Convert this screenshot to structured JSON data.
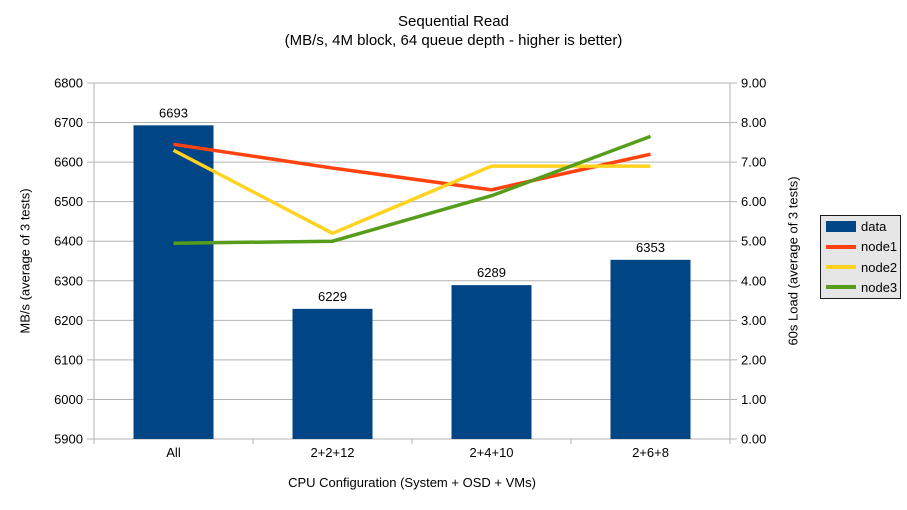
{
  "chart_data": {
    "type": "bar+line combo, dual y-axes",
    "title": "Sequential Read",
    "subtitle": "(MB/s, 4M block, 64 queue depth - higher is better)",
    "categories": [
      "All",
      "2+2+12",
      "2+4+10",
      "2+6+8"
    ],
    "xlabel": "CPU Configuration (System + OSD + VMs)",
    "bar_series": {
      "name": "data",
      "axis": "left",
      "color": "#004586",
      "values": [
        6693,
        6229,
        6289,
        6353
      ],
      "value_labels": [
        "6693",
        "6229",
        "6289",
        "6353"
      ]
    },
    "line_series": [
      {
        "name": "node1",
        "axis": "right",
        "color": "#FF420E",
        "values": [
          7.45,
          6.85,
          6.3,
          7.2
        ]
      },
      {
        "name": "node2",
        "axis": "right",
        "color": "#FFD320",
        "values": [
          7.3,
          5.2,
          6.9,
          6.9
        ]
      },
      {
        "name": "node3",
        "axis": "right",
        "color": "#579D1C",
        "values": [
          4.95,
          5.0,
          6.15,
          7.65
        ]
      }
    ],
    "left_axis": {
      "label": "MB/s (average of 3 tests)",
      "min": 5900,
      "max": 6800,
      "step": 100,
      "decimals": 0
    },
    "right_axis": {
      "label": "60s Load (average of 3 tests)",
      "min": 0,
      "max": 9,
      "step": 1,
      "decimals": 2
    },
    "grid": true,
    "legend": {
      "position": "right",
      "entries": [
        "data",
        "node1",
        "node2",
        "node3"
      ]
    }
  },
  "colors": {
    "background": "#ffffff",
    "text": "#000000",
    "grid": "#b3b3b3",
    "legend_background": "#e6e6e6",
    "legend_border": "#1a1a1a"
  }
}
